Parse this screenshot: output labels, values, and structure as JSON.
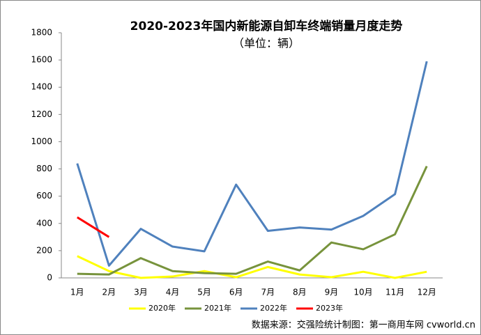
{
  "chart_data": {
    "type": "line",
    "title": "2020-2023年国内新能源自卸车终端销量月度走势",
    "subtitle": "（单位：辆）",
    "source": "数据来源：交强险统计制图：第一商用车网 cvworld.cn",
    "categories": [
      "1月",
      "2月",
      "3月",
      "4月",
      "5月",
      "6月",
      "7月",
      "8月",
      "9月",
      "10月",
      "11月",
      "12月"
    ],
    "series": [
      {
        "name": "2020年",
        "color": "#ffff00",
        "values": [
          160,
          50,
          0,
          10,
          50,
          5,
          80,
          25,
          5,
          45,
          0,
          45
        ]
      },
      {
        "name": "2021年",
        "color": "#77933c",
        "values": [
          30,
          25,
          145,
          50,
          35,
          30,
          120,
          55,
          260,
          210,
          320,
          820
        ]
      },
      {
        "name": "2022年",
        "color": "#4f81bd",
        "values": [
          840,
          90,
          360,
          230,
          195,
          685,
          345,
          370,
          355,
          455,
          615,
          1590
        ]
      },
      {
        "name": "2023年",
        "color": "#ff0000",
        "values": [
          445,
          300,
          null,
          null,
          null,
          null,
          null,
          null,
          null,
          null,
          null,
          null
        ]
      }
    ],
    "ylim": [
      0,
      1800
    ],
    "yticks": [
      0,
      200,
      400,
      600,
      800,
      1000,
      1200,
      1400,
      1600,
      1800
    ],
    "legend": "bottom"
  }
}
